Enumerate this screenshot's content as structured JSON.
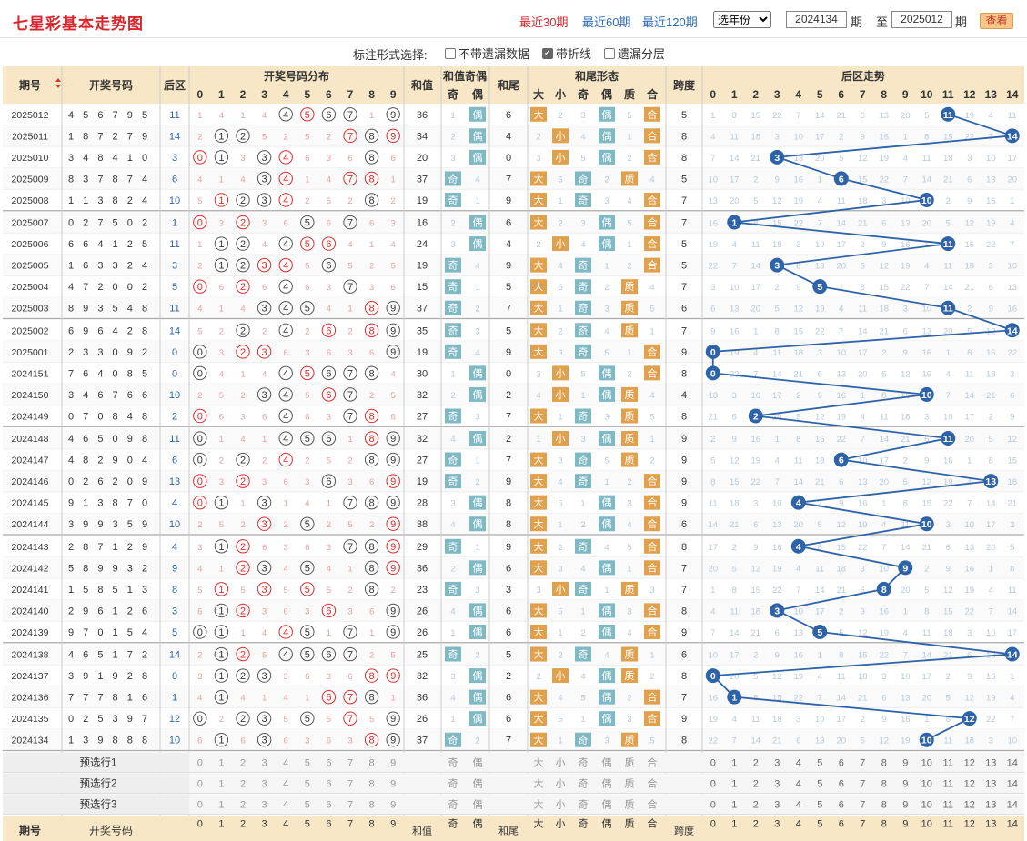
{
  "page_title": "七星彩基本走势图",
  "period_links": [
    {
      "label": "最近30期",
      "active": true
    },
    {
      "label": "最近60期",
      "active": false
    },
    {
      "label": "最近120期",
      "active": false
    }
  ],
  "year_select": "选年份",
  "from_value": "2024134",
  "period_unit": "期",
  "to_label": "至",
  "to_value": "2025012",
  "query_button": "查看",
  "options": {
    "label": "标注形式选择:",
    "items": [
      {
        "label": "不带遗漏数据",
        "checked": false
      },
      {
        "label": "带折线",
        "checked": true
      },
      {
        "label": "遗漏分层",
        "checked": false
      }
    ]
  },
  "header": {
    "issue": "期号",
    "numbers": "开奖号码",
    "back": "后区",
    "dist": "开奖号码分布",
    "sum": "和值",
    "sum_oe": "和值奇偶",
    "odd": "奇",
    "even": "偶",
    "tail": "和尾",
    "tail_form": "和尾形态",
    "big": "大",
    "small": "小",
    "prime": "质",
    "composite": "合",
    "span": "跨度",
    "back_trend": "后区走势"
  },
  "rows": [
    {
      "issue": "2025012",
      "d": [
        4,
        5,
        6,
        7,
        9
      ],
      "b": 5,
      "back": 11
    },
    {
      "issue": "2025011",
      "d": [
        1,
        8,
        7,
        2,
        7
      ],
      "b": 9,
      "back": 14
    },
    {
      "issue": "2025010",
      "d": [
        3,
        4,
        8,
        4,
        1
      ],
      "b": 0,
      "back": 3
    },
    {
      "issue": "2025009",
      "d": [
        8,
        3,
        7,
        8,
        7
      ],
      "b": 4,
      "back": 6
    },
    {
      "issue": "2025008",
      "d": [
        1,
        1,
        3,
        8,
        2
      ],
      "b": 4,
      "back": 10
    },
    {
      "issue": "2025007",
      "d": [
        0,
        2,
        7,
        5,
        0
      ],
      "b": 2,
      "back": 1
    },
    {
      "issue": "2025006",
      "d": [
        6,
        6,
        4,
        1,
        2
      ],
      "b": 5,
      "back": 11
    },
    {
      "issue": "2025005",
      "d": [
        1,
        6,
        3,
        3,
        2
      ],
      "b": 4,
      "back": 3
    },
    {
      "issue": "2025004",
      "d": [
        4,
        7,
        2,
        0,
        0
      ],
      "b": 2,
      "back": 5
    },
    {
      "issue": "2025003",
      "d": [
        8,
        9,
        3,
        5,
        4
      ],
      "b": 8,
      "back": 11
    },
    {
      "issue": "2025002",
      "d": [
        6,
        9,
        6,
        4,
        2
      ],
      "b": 8,
      "back": 14
    },
    {
      "issue": "2025001",
      "d": [
        2,
        3,
        3,
        0,
        9
      ],
      "b": 2,
      "back": 0
    },
    {
      "issue": "2024151",
      "d": [
        7,
        6,
        4,
        0,
        8
      ],
      "b": 5,
      "back": 0
    },
    {
      "issue": "2024150",
      "d": [
        3,
        4,
        6,
        7,
        6
      ],
      "b": 6,
      "back": 10
    },
    {
      "issue": "2024149",
      "d": [
        0,
        7,
        0,
        8,
        4
      ],
      "b": 8,
      "back": 2
    },
    {
      "issue": "2024148",
      "d": [
        4,
        6,
        5,
        0,
        9
      ],
      "b": 8,
      "back": 11
    },
    {
      "issue": "2024147",
      "d": [
        4,
        8,
        2,
        9,
        0
      ],
      "b": 4,
      "back": 6
    },
    {
      "issue": "2024146",
      "d": [
        0,
        2,
        6,
        2,
        0
      ],
      "b": 9,
      "back": 13
    },
    {
      "issue": "2024145",
      "d": [
        9,
        1,
        3,
        8,
        7
      ],
      "b": 0,
      "back": 4
    },
    {
      "issue": "2024144",
      "d": [
        3,
        9,
        9,
        3,
        5
      ],
      "b": 9,
      "back": 10
    },
    {
      "issue": "2024143",
      "d": [
        2,
        8,
        7,
        1,
        2
      ],
      "b": 9,
      "back": 4
    },
    {
      "issue": "2024142",
      "d": [
        5,
        8,
        9,
        9,
        3
      ],
      "b": 2,
      "back": 9
    },
    {
      "issue": "2024141",
      "d": [
        1,
        5,
        8,
        5,
        1
      ],
      "b": 3,
      "back": 8
    },
    {
      "issue": "2024140",
      "d": [
        2,
        9,
        6,
        1,
        2
      ],
      "b": 6,
      "back": 3
    },
    {
      "issue": "2024139",
      "d": [
        9,
        7,
        0,
        1,
        5
      ],
      "b": 4,
      "back": 5
    },
    {
      "issue": "2024138",
      "d": [
        4,
        6,
        5,
        1,
        7
      ],
      "b": 2,
      "back": 14
    },
    {
      "issue": "2024137",
      "d": [
        3,
        9,
        1,
        9,
        2
      ],
      "b": 8,
      "back": 0
    },
    {
      "issue": "2024136",
      "d": [
        7,
        7,
        7,
        8,
        1
      ],
      "b": 6,
      "back": 1
    },
    {
      "issue": "2024135",
      "d": [
        0,
        2,
        5,
        3,
        9
      ],
      "b": 7,
      "back": 12
    },
    {
      "issue": "2024134",
      "d": [
        1,
        3,
        9,
        8,
        8
      ],
      "b": 8,
      "back": 10
    }
  ],
  "select_rows": [
    "预选行1",
    "预选行2",
    "预选行3"
  ],
  "colors": {
    "header_bg": "#f7e7c6",
    "red": "#e02b2b",
    "blue": "#2f63a8",
    "even_bg": "#7fb9c4",
    "big_bg": "#e0a04c",
    "miss": "#b9c9d8"
  }
}
